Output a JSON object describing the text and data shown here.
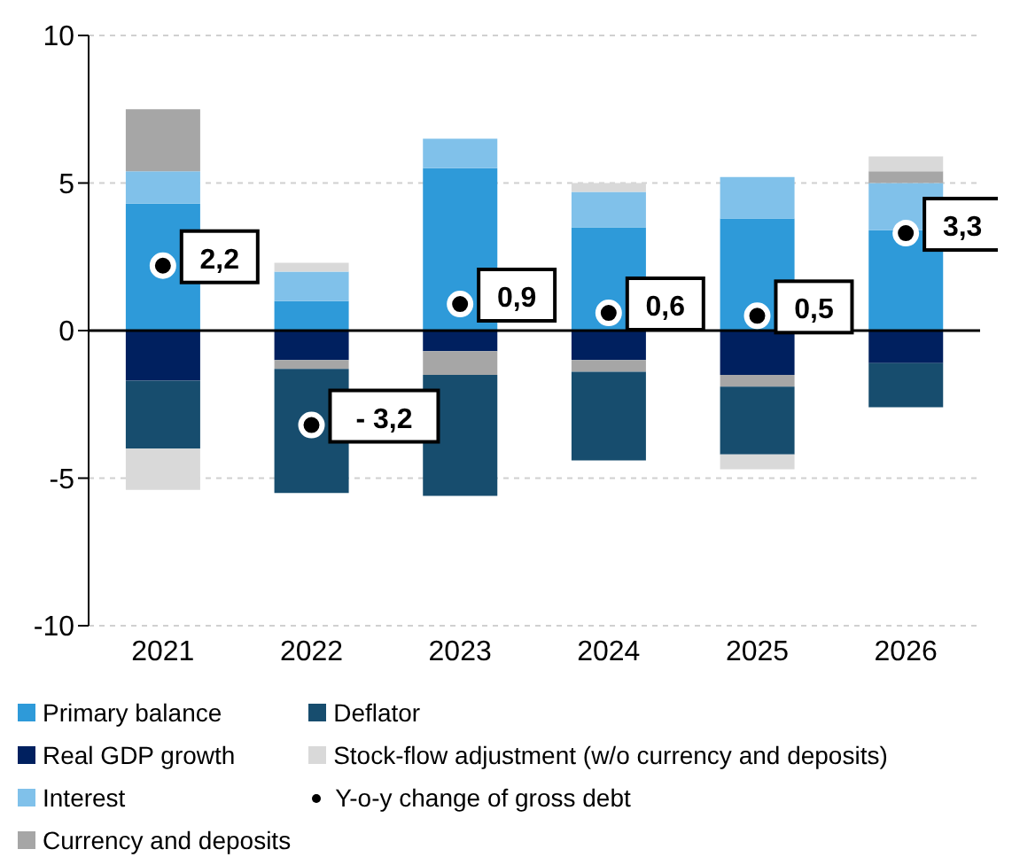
{
  "chart_data": {
    "type": "bar",
    "stacked": true,
    "categories": [
      "2021",
      "2022",
      "2023",
      "2024",
      "2025",
      "2026"
    ],
    "series": [
      {
        "name": "Primary balance",
        "color": "#2e9ad9",
        "values": [
          4.3,
          1.0,
          5.5,
          3.5,
          3.8,
          3.4
        ]
      },
      {
        "name": "Real GDP growth",
        "color": "#00205f",
        "values": [
          -1.7,
          -1.0,
          -0.7,
          -1.0,
          -1.5,
          -1.1
        ]
      },
      {
        "name": "Interest",
        "color": "#80c1ea",
        "values": [
          1.1,
          1.0,
          1.0,
          1.2,
          1.4,
          1.6
        ]
      },
      {
        "name": "Currency and deposits",
        "color": "#a6a6a6",
        "values": [
          2.1,
          -0.3,
          -0.8,
          -0.4,
          -0.4,
          0.4
        ]
      },
      {
        "name": "Deflator",
        "color": "#174d6e",
        "values": [
          -2.3,
          -4.2,
          -4.1,
          -3.0,
          -2.3,
          -1.5
        ]
      },
      {
        "name": "Stock-flow adjustment (w/o currency and deposits)",
        "color": "#d9d9d9",
        "values": [
          -1.4,
          0.3,
          null,
          0.3,
          -0.5,
          0.5
        ]
      },
      {
        "name": "Y-o-y change of gross debt",
        "type": "scatter",
        "color": "#000000",
        "marker": "circle",
        "values": [
          2.2,
          -3.2,
          0.9,
          0.6,
          0.5,
          3.3
        ],
        "value_labels": [
          "2,2",
          "- 3,2",
          "0,9",
          "0,6",
          "0,5",
          "3,3"
        ]
      }
    ],
    "ylim": [
      -10,
      10
    ],
    "yticks": [
      -10,
      -5,
      0,
      5,
      10
    ],
    "grid": "y",
    "legend": "bottom"
  }
}
